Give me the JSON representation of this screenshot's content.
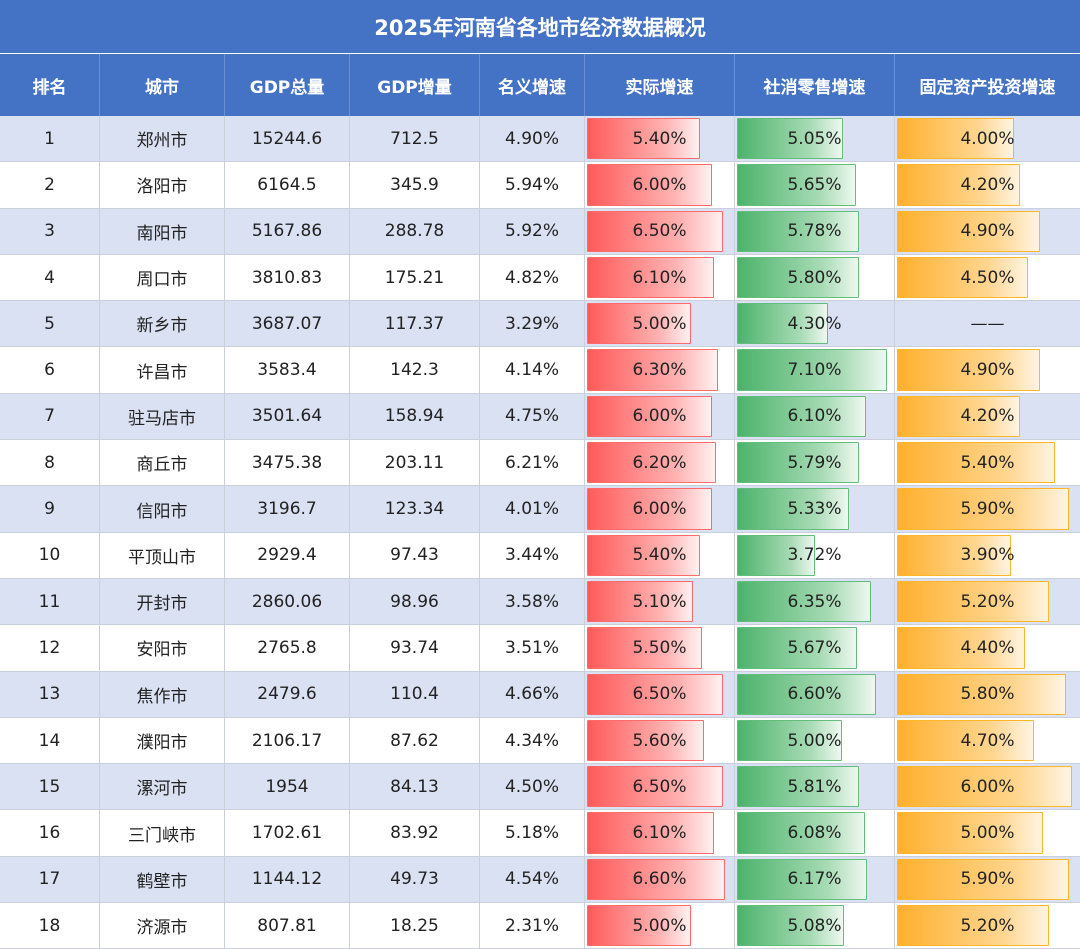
{
  "title": "2025年河南省各地市经济数据概况",
  "headers": [
    "排名",
    "城市",
    "GDP总量",
    "GDP增量",
    "名义增速",
    "实际增速",
    "社消零售增速",
    "固定资产投资增速"
  ],
  "colors": {
    "header_bg": "#4472c4",
    "band": "#d9e1f2",
    "real_bar": "#ff5a5a",
    "retail_bar": "#4cb36b",
    "invest_bar": "#ffb02e"
  },
  "rows": [
    {
      "rank": "1",
      "city": "郑州市",
      "gdp": "15244.6",
      "gdp_inc": "712.5",
      "nominal": "4.90%",
      "real": "5.40%",
      "retail": "5.05%",
      "invest": "4.00%"
    },
    {
      "rank": "2",
      "city": "洛阳市",
      "gdp": "6164.5",
      "gdp_inc": "345.9",
      "nominal": "5.94%",
      "real": "6.00%",
      "retail": "5.65%",
      "invest": "4.20%"
    },
    {
      "rank": "3",
      "city": "南阳市",
      "gdp": "5167.86",
      "gdp_inc": "288.78",
      "nominal": "5.92%",
      "real": "6.50%",
      "retail": "5.78%",
      "invest": "4.90%"
    },
    {
      "rank": "4",
      "city": "周口市",
      "gdp": "3810.83",
      "gdp_inc": "175.21",
      "nominal": "4.82%",
      "real": "6.10%",
      "retail": "5.80%",
      "invest": "4.50%"
    },
    {
      "rank": "5",
      "city": "新乡市",
      "gdp": "3687.07",
      "gdp_inc": "117.37",
      "nominal": "3.29%",
      "real": "5.00%",
      "retail": "4.30%",
      "invest": "——"
    },
    {
      "rank": "6",
      "city": "许昌市",
      "gdp": "3583.4",
      "gdp_inc": "142.3",
      "nominal": "4.14%",
      "real": "6.30%",
      "retail": "7.10%",
      "invest": "4.90%"
    },
    {
      "rank": "7",
      "city": "驻马店市",
      "gdp": "3501.64",
      "gdp_inc": "158.94",
      "nominal": "4.75%",
      "real": "6.00%",
      "retail": "6.10%",
      "invest": "4.20%"
    },
    {
      "rank": "8",
      "city": "商丘市",
      "gdp": "3475.38",
      "gdp_inc": "203.11",
      "nominal": "6.21%",
      "real": "6.20%",
      "retail": "5.79%",
      "invest": "5.40%"
    },
    {
      "rank": "9",
      "city": "信阳市",
      "gdp": "3196.7",
      "gdp_inc": "123.34",
      "nominal": "4.01%",
      "real": "6.00%",
      "retail": "5.33%",
      "invest": "5.90%"
    },
    {
      "rank": "10",
      "city": "平顶山市",
      "gdp": "2929.4",
      "gdp_inc": "97.43",
      "nominal": "3.44%",
      "real": "5.40%",
      "retail": "3.72%",
      "invest": "3.90%"
    },
    {
      "rank": "11",
      "city": "开封市",
      "gdp": "2860.06",
      "gdp_inc": "98.96",
      "nominal": "3.58%",
      "real": "5.10%",
      "retail": "6.35%",
      "invest": "5.20%"
    },
    {
      "rank": "12",
      "city": "安阳市",
      "gdp": "2765.8",
      "gdp_inc": "93.74",
      "nominal": "3.51%",
      "real": "5.50%",
      "retail": "5.67%",
      "invest": "4.40%"
    },
    {
      "rank": "13",
      "city": "焦作市",
      "gdp": "2479.6",
      "gdp_inc": "110.4",
      "nominal": "4.66%",
      "real": "6.50%",
      "retail": "6.60%",
      "invest": "5.80%"
    },
    {
      "rank": "14",
      "city": "濮阳市",
      "gdp": "2106.17",
      "gdp_inc": "87.62",
      "nominal": "4.34%",
      "real": "5.60%",
      "retail": "5.00%",
      "invest": "4.70%"
    },
    {
      "rank": "15",
      "city": "漯河市",
      "gdp": "1954",
      "gdp_inc": "84.13",
      "nominal": "4.50%",
      "real": "6.50%",
      "retail": "5.81%",
      "invest": "6.00%"
    },
    {
      "rank": "16",
      "city": "三门峡市",
      "gdp": "1702.61",
      "gdp_inc": "83.92",
      "nominal": "5.18%",
      "real": "6.10%",
      "retail": "6.08%",
      "invest": "5.00%"
    },
    {
      "rank": "17",
      "city": "鹤壁市",
      "gdp": "1144.12",
      "gdp_inc": "49.73",
      "nominal": "4.54%",
      "real": "6.60%",
      "retail": "6.17%",
      "invest": "5.90%"
    },
    {
      "rank": "18",
      "city": "济源市",
      "gdp": "807.81",
      "gdp_inc": "18.25",
      "nominal": "2.31%",
      "real": "5.00%",
      "retail": "5.08%",
      "invest": "5.20%"
    }
  ]
}
